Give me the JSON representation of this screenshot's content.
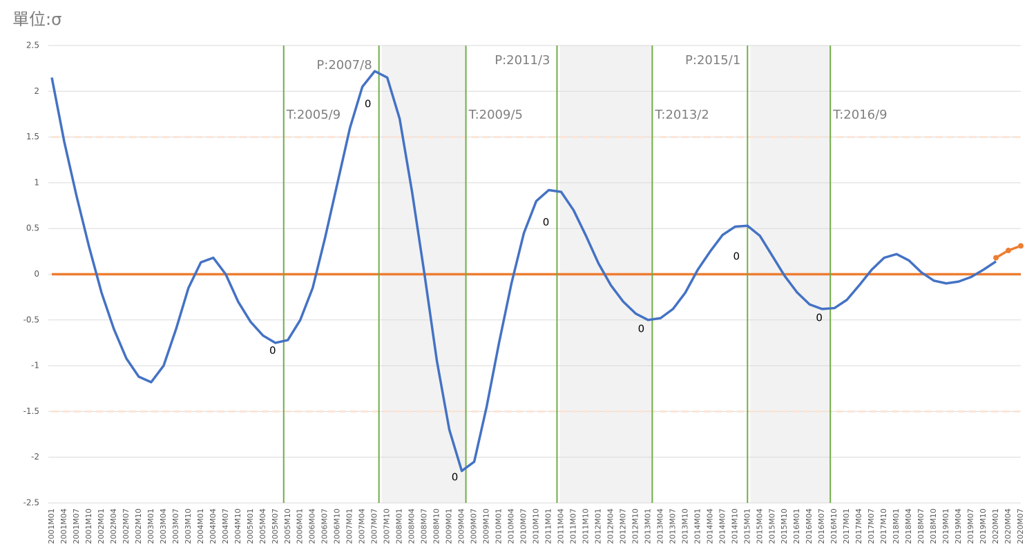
{
  "chart_data": {
    "type": "line",
    "title": "單位:σ",
    "categories": [
      "2001M01",
      "2001M04",
      "2001M07",
      "2001M10",
      "2002M01",
      "2002M04",
      "2002M07",
      "2002M10",
      "2003M01",
      "2003M04",
      "2003M07",
      "2003M10",
      "2004M01",
      "2004M04",
      "2004M07",
      "2004M10",
      "2005M01",
      "2005M04",
      "2005M07",
      "2005M10",
      "2006M01",
      "2006M04",
      "2006M07",
      "2006M10",
      "2007M01",
      "2007M04",
      "2007M07",
      "2007M10",
      "2008M01",
      "2008M04",
      "2008M07",
      "2008M10",
      "2009M01",
      "2009M04",
      "2009M07",
      "2009M10",
      "2010M01",
      "2010M04",
      "2010M07",
      "2010M10",
      "2011M01",
      "2011M04",
      "2011M07",
      "2011M10",
      "2012M01",
      "2012M04",
      "2012M07",
      "2012M10",
      "2013M01",
      "2013M04",
      "2013M07",
      "2013M10",
      "2014M01",
      "2014M04",
      "2014M07",
      "2014M10",
      "2015M01",
      "2015M04",
      "2015M07",
      "2015M10",
      "2016M01",
      "2016M04",
      "2016M07",
      "2016M10",
      "2017M01",
      "2017M04",
      "2017M07",
      "2017M10",
      "2018M01",
      "2018M04",
      "2018M07",
      "2018M10",
      "2019M01",
      "2019M04",
      "2019M07",
      "2019M10",
      "2020M01",
      "2020M04",
      "2020M07"
    ],
    "series": [
      {
        "color": "#4472c4",
        "values": [
          2.15,
          1.45,
          0.85,
          0.3,
          -0.2,
          -0.6,
          -0.92,
          -1.12,
          -1.18,
          -1.0,
          -0.6,
          -0.15,
          0.13,
          0.18,
          0.0,
          -0.3,
          -0.52,
          -0.67,
          -0.75,
          -0.72,
          -0.5,
          -0.15,
          0.4,
          1.0,
          1.6,
          2.05,
          2.22,
          2.15,
          1.7,
          0.9,
          0.0,
          -0.95,
          -1.7,
          -2.15,
          -2.05,
          -1.45,
          -0.75,
          -0.1,
          0.45,
          0.8,
          0.92,
          0.9,
          0.7,
          0.42,
          0.12,
          -0.12,
          -0.3,
          -0.43,
          -0.5,
          -0.48,
          -0.38,
          -0.2,
          0.05,
          0.25,
          0.43,
          0.52,
          0.53,
          0.42,
          0.2,
          -0.02,
          -0.2,
          -0.33,
          -0.38,
          -0.37,
          -0.28,
          -0.12,
          0.05,
          0.18,
          0.22,
          0.15,
          0.02,
          -0.07,
          -0.1,
          -0.08,
          -0.03,
          0.05,
          0.14,
          null,
          null
        ]
      },
      {
        "color": "#ed7d31",
        "markers": true,
        "values": [
          null,
          null,
          null,
          null,
          null,
          null,
          null,
          null,
          null,
          null,
          null,
          null,
          null,
          null,
          null,
          null,
          null,
          null,
          null,
          null,
          null,
          null,
          null,
          null,
          null,
          null,
          null,
          null,
          null,
          null,
          null,
          null,
          null,
          null,
          null,
          null,
          null,
          null,
          null,
          null,
          null,
          null,
          null,
          null,
          null,
          null,
          null,
          null,
          null,
          null,
          null,
          null,
          null,
          null,
          null,
          null,
          null,
          null,
          null,
          null,
          null,
          null,
          null,
          null,
          null,
          null,
          null,
          null,
          null,
          null,
          null,
          null,
          null,
          null,
          null,
          null,
          0.18,
          0.26,
          0.31
        ]
      }
    ],
    "reference_lines": [
      {
        "value": 0,
        "color": "#ed7d31",
        "dashed": false
      },
      {
        "value": 1.5,
        "color": "#fbe5d6",
        "dashed": true
      },
      {
        "value": -1.5,
        "color": "#fbe5d6",
        "dashed": true
      }
    ],
    "turns": [
      {
        "label": "T:2005/9",
        "value": 0
      },
      {
        "label": "P:2007/8",
        "value": 0
      },
      {
        "label": "T:2009/5",
        "value": 0
      },
      {
        "label": "P:2011/3",
        "value": 0
      },
      {
        "label": "T:2013/2",
        "value": 0
      },
      {
        "label": "P:2015/1",
        "value": 0
      },
      {
        "label": "T:2016/9",
        "value": 0
      }
    ],
    "turn_color": "#70ad47",
    "shade_color": "#f2f2f2",
    "ylim": [
      -2.5,
      2.5
    ],
    "yticks": [
      -2.5,
      -2,
      -1.5,
      -1,
      -0.5,
      0,
      0.5,
      1,
      1.5,
      2,
      2.5
    ],
    "grid": true
  }
}
